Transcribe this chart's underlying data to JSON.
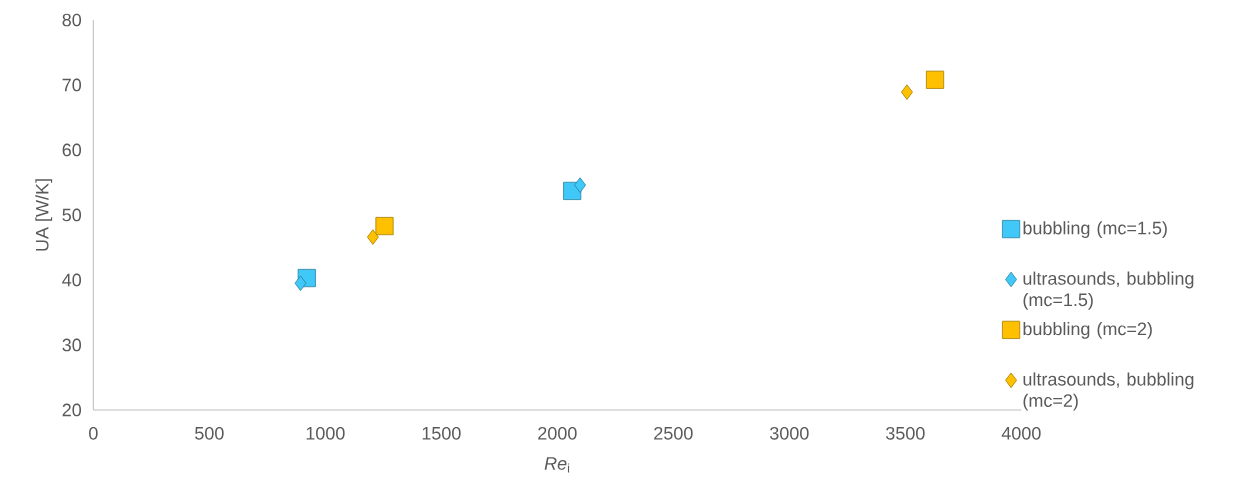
{
  "chart_data": {
    "type": "scatter",
    "xlabel": "*Re*$_{i}$",
    "ylabel": "UA [W/K]",
    "xlim": [
      0,
      4000
    ],
    "ylim": [
      20,
      80
    ],
    "xticks": [
      0,
      500,
      1000,
      1500,
      2000,
      2500,
      3000,
      3500,
      4000
    ],
    "yticks": [
      20,
      30,
      40,
      50,
      60,
      70,
      80
    ],
    "grid": false,
    "legend": "right",
    "series": [
      {
        "name": "bubbling (mc=1.5)",
        "color": "#3fc8f8",
        "marker": "square",
        "x": [
          920,
          2064
        ],
        "values": [
          40.3,
          53.7
        ]
      },
      {
        "name": "ultrasounds, bubbling (mc=1.5)",
        "color": "#3fc8f8",
        "marker": "diamond",
        "x": [
          893,
          2098
        ],
        "values": [
          39.5,
          54.6
        ]
      },
      {
        "name": "bubbling (mc=2)",
        "color": "#ffc000",
        "marker": "square",
        "x": [
          1255,
          3628
        ],
        "values": [
          48.3,
          70.8
        ]
      },
      {
        "name": "ultrasounds, bubbling (mc=2)",
        "color": "#ffc000",
        "marker": "diamond",
        "x": [
          1205,
          3507
        ],
        "values": [
          46.6,
          68.9
        ]
      }
    ]
  }
}
